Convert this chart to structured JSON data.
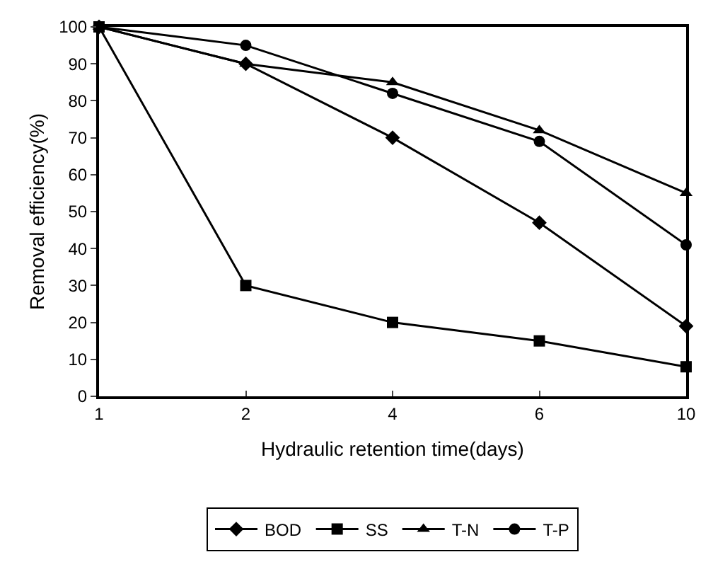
{
  "chart_data": {
    "type": "line",
    "xlabel": "Hydraulic retention time(days)",
    "ylabel": "Removal efficiency(%)",
    "categories": [
      "1",
      "2",
      "4",
      "6",
      "10"
    ],
    "ylim": [
      0,
      100
    ],
    "yticks": [
      0,
      10,
      20,
      30,
      40,
      50,
      60,
      70,
      80,
      90,
      100
    ],
    "grid": false,
    "legend": "bottom",
    "line_style": "solid",
    "series": [
      {
        "name": "BOD",
        "color": "#000000",
        "marker": "diamond",
        "values": [
          100,
          90,
          70,
          47,
          19
        ]
      },
      {
        "name": "SS",
        "color": "#000000",
        "marker": "square",
        "values": [
          100,
          30,
          20,
          15,
          8
        ]
      },
      {
        "name": "T-N",
        "color": "#000000",
        "marker": "triangle",
        "values": [
          100,
          90,
          85,
          72,
          55
        ]
      },
      {
        "name": "T-P",
        "color": "#000000",
        "marker": "circle",
        "values": [
          100,
          95,
          82,
          69,
          41
        ]
      }
    ]
  }
}
